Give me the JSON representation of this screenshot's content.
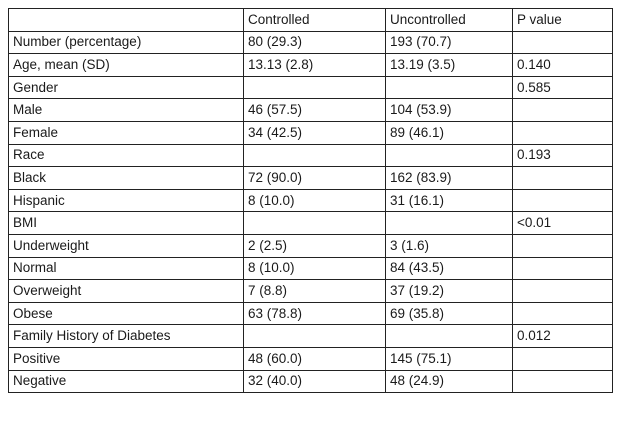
{
  "table": {
    "headers": [
      "",
      "Controlled",
      "Uncontrolled",
      "P value"
    ],
    "rows": [
      {
        "label": "Number (percentage)",
        "controlled": "80 (29.3)",
        "uncontrolled": "193 (70.7)",
        "p": "",
        "indent": false
      },
      {
        "label": "Age, mean (SD)",
        "controlled": "13.13 (2.8)",
        "uncontrolled": "13.19 (3.5)",
        "p": "0.140",
        "indent": false
      },
      {
        "label": "Gender",
        "controlled": "",
        "uncontrolled": "",
        "p": "0.585",
        "indent": false
      },
      {
        "label": "Male",
        "controlled": "46 (57.5)",
        "uncontrolled": "104 (53.9)",
        "p": "",
        "indent": true
      },
      {
        "label": "Female",
        "controlled": "34 (42.5)",
        "uncontrolled": "89 (46.1)",
        "p": "",
        "indent": true
      },
      {
        "label": "Race",
        "controlled": "",
        "uncontrolled": "",
        "p": "0.193",
        "indent": false
      },
      {
        "label": "Black",
        "controlled": "72 (90.0)",
        "uncontrolled": "162 (83.9)",
        "p": "",
        "indent": true
      },
      {
        "label": "Hispanic",
        "controlled": "8 (10.0)",
        "uncontrolled": "31 (16.1)",
        "p": "",
        "indent": true
      },
      {
        "label": "BMI",
        "controlled": "",
        "uncontrolled": "",
        "p": "<0.01",
        "indent": false
      },
      {
        "label": "Underweight",
        "controlled": "2 (2.5)",
        "uncontrolled": "3 (1.6)",
        "p": "",
        "indent": true
      },
      {
        "label": "Normal",
        "controlled": "8 (10.0)",
        "uncontrolled": "84 (43.5)",
        "p": "",
        "indent": true
      },
      {
        "label": "Overweight",
        "controlled": "7 (8.8)",
        "uncontrolled": "37 (19.2)",
        "p": "",
        "indent": true
      },
      {
        "label": "Obese",
        "controlled": "63 (78.8)",
        "uncontrolled": "69 (35.8)",
        "p": "",
        "indent": true
      },
      {
        "label": "Family History of Diabetes",
        "controlled": "",
        "uncontrolled": "",
        "p": "0.012",
        "indent": false
      },
      {
        "label": "Positive",
        "controlled": "48 (60.0)",
        "uncontrolled": "145 (75.1)",
        "p": "",
        "indent": true
      },
      {
        "label": "Negative",
        "controlled": "32 (40.0)",
        "uncontrolled": "48 (24.9)",
        "p": "",
        "indent": true
      }
    ]
  }
}
